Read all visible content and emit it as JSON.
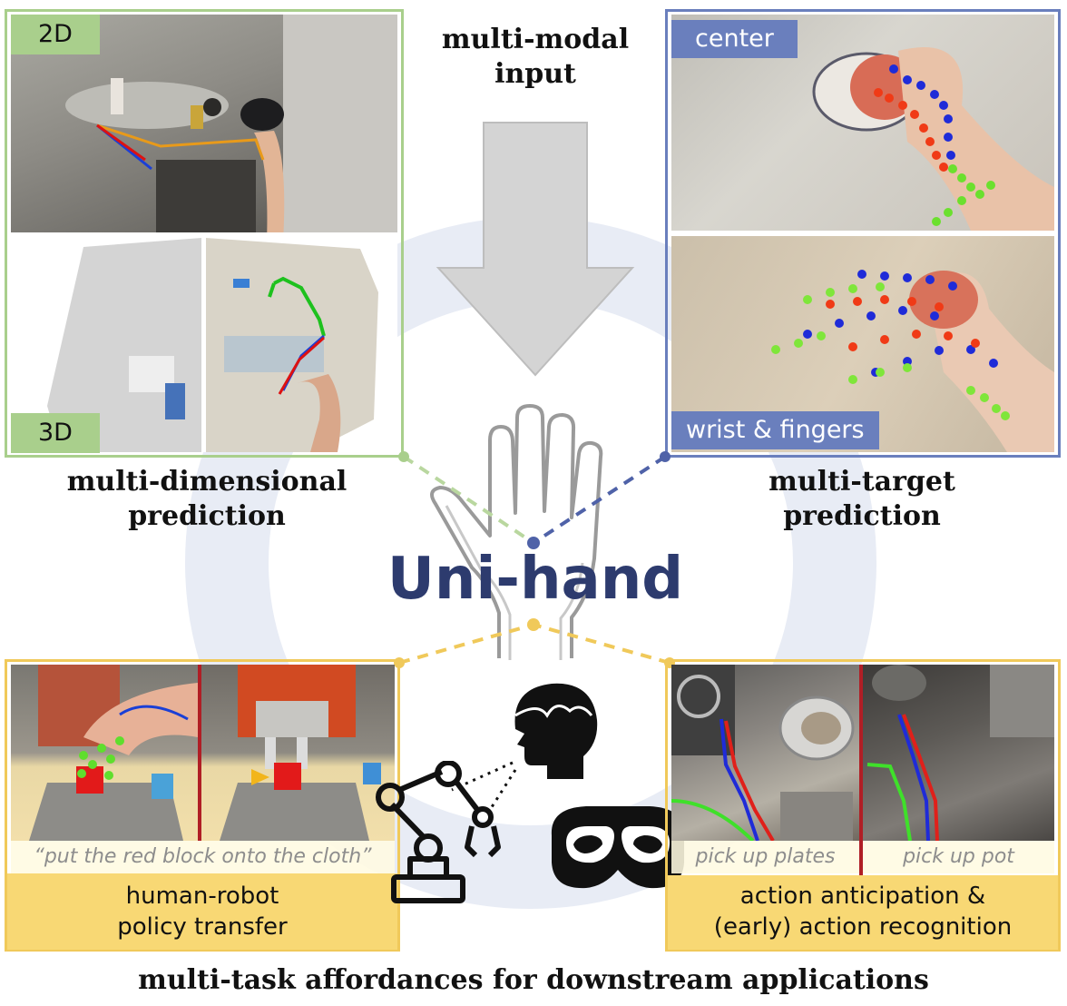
{
  "center": {
    "input_label": "multi-modal input",
    "input_line1": "multi-modal",
    "input_line2": "input",
    "title": "Uni-hand",
    "bottom_title": "multi-task affordances for downstream applications"
  },
  "left_panel": {
    "tag_2d": "2D",
    "tag_3d": "3D",
    "label_line1": "multi-dimensional",
    "label_line2": "prediction"
  },
  "right_panel": {
    "tag_center": "center",
    "tag_wrist": "wrist & fingers",
    "label_line1": "multi-target",
    "label_line2": "prediction"
  },
  "bottom_left": {
    "instruction": "“put the red block onto the cloth”",
    "caption_line1": "human-robot",
    "caption_line2": "policy transfer"
  },
  "bottom_right": {
    "clip1": "pick up plates",
    "clip2": "pick up pot",
    "caption_line1": "action anticipation &",
    "caption_line2": "(early) action recognition"
  },
  "icons": [
    "hand-outline-icon",
    "arrow-down-icon",
    "robot-arm-icon",
    "human-head-icon",
    "vr-headset-icon"
  ],
  "colors": {
    "green": "#a9cf8c",
    "blue": "#6a7fbd",
    "yellow": "#f0c95a",
    "title": "#2d3b6e",
    "red_divider": "#b01e25"
  }
}
